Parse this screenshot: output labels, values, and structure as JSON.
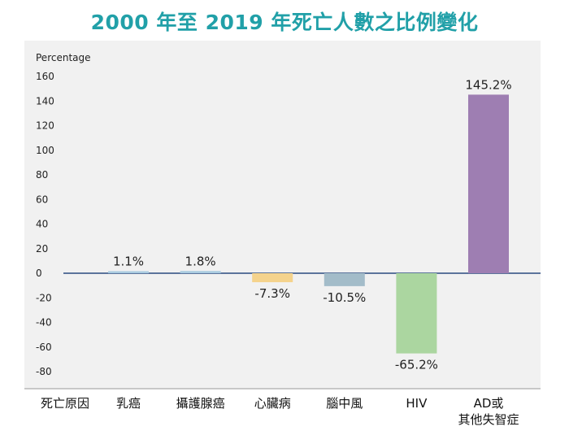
{
  "chart_data": {
    "type": "bar",
    "title": "2000 年至 2019 年死亡人數之比例變化",
    "ylabel": "Percentage",
    "xlabel": "死亡原因",
    "ylim": [
      -85,
      165
    ],
    "yticks": [
      160,
      140,
      120,
      100,
      80,
      60,
      40,
      20,
      0,
      -20,
      -40,
      -60,
      -80
    ],
    "categories": [
      {
        "lines": [
          "乳癌"
        ]
      },
      {
        "lines": [
          "攝護腺癌"
        ]
      },
      {
        "lines": [
          "心臟病"
        ]
      },
      {
        "lines": [
          "腦中風"
        ]
      },
      {
        "lines": [
          "HIV"
        ]
      },
      {
        "lines": [
          "AD或",
          "其他失智症"
        ]
      }
    ],
    "values": [
      1.1,
      1.8,
      -7.3,
      -10.5,
      -65.2,
      145.2
    ],
    "value_labels": [
      "1.1%",
      "1.8%",
      "-7.3%",
      "-10.5%",
      "-65.2%",
      "145.2%"
    ],
    "colors": [
      "#a9cbe0",
      "#a9cbe0",
      "#f5d38c",
      "#a3bcc9",
      "#abd6a0",
      "#9e7eb2"
    ],
    "grid": false,
    "legend": "none"
  }
}
